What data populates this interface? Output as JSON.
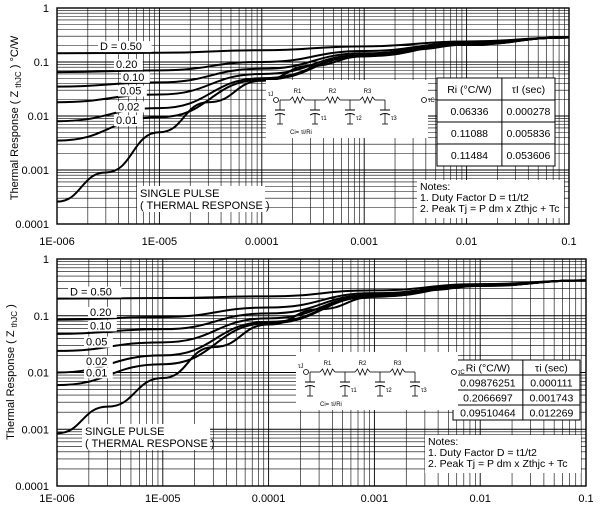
{
  "chart_data": [
    {
      "type": "line",
      "title": "",
      "xlabel": "",
      "ylabel_main": "Thermal Response ( Z ",
      "ylabel_sub": "thJC",
      "ylabel_tail": " ) °C/W",
      "x_scale": "log",
      "y_scale": "log",
      "xlim": [
        1e-06,
        0.1
      ],
      "ylim": [
        0.0001,
        1
      ],
      "grid": true,
      "x_tick_labels": [
        "1E-006",
        "1E-005",
        "0.0001",
        "0.001",
        "0.01",
        "0.1"
      ],
      "y_tick_labels": [
        "1",
        "0.1",
        "0.01",
        "0.001",
        "0.0001"
      ],
      "series": [
        {
          "name": "D = 0.50",
          "x": [
            1e-06,
            1e-05,
            0.0001,
            0.001,
            0.01,
            0.1
          ],
          "y": [
            0.145,
            0.148,
            0.165,
            0.195,
            0.24,
            0.285
          ]
        },
        {
          "name": "0.20",
          "x": [
            1e-06,
            1e-05,
            0.0001,
            0.001,
            0.01,
            0.1
          ],
          "y": [
            0.065,
            0.07,
            0.1,
            0.16,
            0.225,
            0.285
          ]
        },
        {
          "name": "0.10",
          "x": [
            1e-06,
            1e-05,
            0.0001,
            0.001,
            0.01,
            0.1
          ],
          "y": [
            0.035,
            0.042,
            0.075,
            0.145,
            0.22,
            0.285
          ]
        },
        {
          "name": "0.05",
          "x": [
            1e-06,
            1e-05,
            0.0001,
            0.001,
            0.01,
            0.1
          ],
          "y": [
            0.018,
            0.025,
            0.06,
            0.135,
            0.215,
            0.285
          ]
        },
        {
          "name": "0.02",
          "x": [
            1e-06,
            1e-05,
            0.0001,
            0.001,
            0.01,
            0.1
          ],
          "y": [
            0.008,
            0.014,
            0.05,
            0.13,
            0.212,
            0.285
          ]
        },
        {
          "name": "0.01",
          "x": [
            1e-06,
            1e-05,
            0.0001,
            0.001,
            0.01,
            0.1
          ],
          "y": [
            0.0035,
            0.0095,
            0.047,
            0.128,
            0.21,
            0.285
          ]
        },
        {
          "name": "SINGLE PULSE ( THERMAL RESPONSE )",
          "x": [
            1e-06,
            3e-06,
            1e-05,
            3e-05,
            0.0001,
            0.0003,
            0.001,
            0.003,
            0.01,
            0.1
          ],
          "y": [
            0.00026,
            0.0009,
            0.005,
            0.018,
            0.045,
            0.085,
            0.127,
            0.17,
            0.21,
            0.285
          ]
        }
      ],
      "curve_labels": [
        "D = 0.50",
        "0.20",
        "0.10",
        "0.05",
        "0.02",
        "0.01"
      ],
      "single_pulse_label": [
        "SINGLE PULSE",
        "( THERMAL RESPONSE )"
      ],
      "rc_table": {
        "headers": [
          "Ri (°C/W)",
          "τI (sec)"
        ],
        "rows": [
          [
            "0.06336",
            "0.000278"
          ],
          [
            "0.11088",
            "0.005836"
          ],
          [
            "0.11484",
            "0.053606"
          ]
        ]
      },
      "circuit": {
        "r_labels": [
          "R1",
          "R2",
          "R3"
        ],
        "tau_labels": [
          "τJ",
          "τ1",
          "τ2",
          "τ3",
          "τC"
        ],
        "ci_text": "Ci= τi/Ri"
      },
      "notes": [
        "Notes:",
        "1. Duty Factor D = t1/t2",
        "2. Peak Tj = P dm x Zthjc + Tc"
      ]
    },
    {
      "type": "line",
      "title": "",
      "xlabel": "",
      "ylabel_main": "Thermal Response ( Z ",
      "ylabel_sub": "thJC",
      "ylabel_tail": " )",
      "x_scale": "log",
      "y_scale": "log",
      "xlim": [
        1e-06,
        0.1
      ],
      "ylim": [
        0.0001,
        1
      ],
      "grid": true,
      "x_tick_labels": [
        "1E-006",
        "1E-005",
        "0.0001",
        "0.001",
        "0.01",
        "0.1"
      ],
      "y_tick_labels": [
        "1",
        "0.1",
        "0.01",
        "0.001",
        "0.0001"
      ],
      "series": [
        {
          "name": "D = 0.50",
          "x": [
            1e-06,
            1e-05,
            0.0001,
            0.001,
            0.01,
            0.1
          ],
          "y": [
            0.2,
            0.205,
            0.22,
            0.28,
            0.36,
            0.42
          ]
        },
        {
          "name": "0.20",
          "x": [
            1e-06,
            1e-05,
            0.0001,
            0.001,
            0.01,
            0.1
          ],
          "y": [
            0.085,
            0.095,
            0.14,
            0.25,
            0.35,
            0.42
          ]
        },
        {
          "name": "0.10",
          "x": [
            1e-06,
            1e-05,
            0.0001,
            0.001,
            0.01,
            0.1
          ],
          "y": [
            0.048,
            0.058,
            0.11,
            0.235,
            0.345,
            0.42
          ]
        },
        {
          "name": "0.05",
          "x": [
            1e-06,
            1e-05,
            0.0001,
            0.001,
            0.01,
            0.1
          ],
          "y": [
            0.024,
            0.034,
            0.09,
            0.225,
            0.34,
            0.42
          ]
        },
        {
          "name": "0.02",
          "x": [
            1e-06,
            1e-05,
            0.0001,
            0.001,
            0.01,
            0.1
          ],
          "y": [
            0.01,
            0.02,
            0.078,
            0.22,
            0.338,
            0.42
          ]
        },
        {
          "name": "0.01",
          "x": [
            1e-06,
            1e-05,
            0.0001,
            0.001,
            0.01,
            0.1
          ],
          "y": [
            0.006,
            0.014,
            0.074,
            0.218,
            0.336,
            0.42
          ]
        },
        {
          "name": "SINGLE PULSE ( THERMAL RESPONSE )",
          "x": [
            1e-06,
            3e-06,
            1e-05,
            3e-05,
            0.0001,
            0.0003,
            0.001,
            0.003,
            0.01,
            0.1
          ],
          "y": [
            0.00085,
            0.0025,
            0.008,
            0.028,
            0.07,
            0.13,
            0.215,
            0.28,
            0.335,
            0.42
          ]
        }
      ],
      "curve_labels": [
        "D = 0.50",
        "0.20",
        "0.10",
        "0.05",
        "0.02",
        "0.01"
      ],
      "single_pulse_label": [
        "SINGLE PULSE",
        "( THERMAL RESPONSE )"
      ],
      "rc_table": {
        "headers": [
          "Ri (°C/W)",
          "τi (sec)"
        ],
        "rows": [
          [
            "0.09876251",
            "0.000111"
          ],
          [
            "0.2066697",
            "0.001743"
          ],
          [
            "0.09510464",
            "0.012269"
          ]
        ]
      },
      "circuit": {
        "r_labels": [
          "R1",
          "R2",
          "R3"
        ],
        "tau_labels": [
          "τJ",
          "τ1",
          "τ2",
          "τ3",
          "τC"
        ],
        "ci_text": "Ci= τi/Ri"
      },
      "notes": [
        "Notes:",
        "1. Duty Factor D = t1/t2",
        "2. Peak Tj = P dm x Zthjc + Tc"
      ]
    }
  ]
}
